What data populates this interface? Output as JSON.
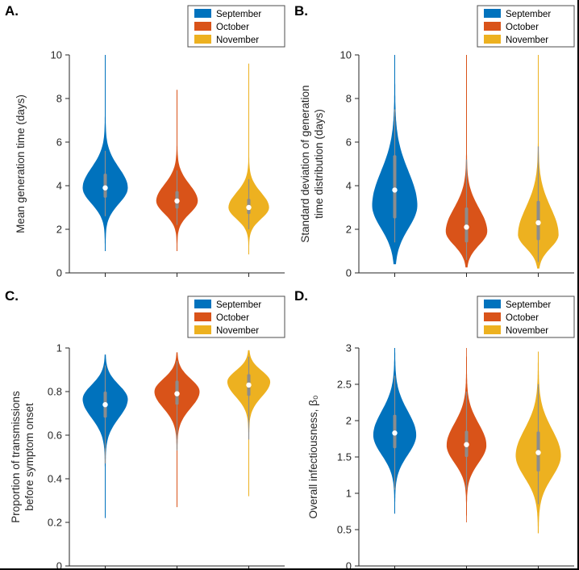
{
  "figure": {
    "background": "#FFFFFF",
    "months": [
      {
        "label": "September",
        "color": "#0072BD"
      },
      {
        "label": "October",
        "color": "#D95319"
      },
      {
        "label": "November",
        "color": "#EDB120"
      }
    ]
  },
  "chart_data": [
    {
      "type": "violin",
      "panel_label": "A.",
      "ylabel_lines": [
        "Mean generation time (days)"
      ],
      "ylim": [
        0,
        10
      ],
      "ytick_values": [
        0,
        2,
        4,
        6,
        8,
        10
      ],
      "ytick_labels": [
        "0",
        "2",
        "4",
        "6",
        "8",
        "10"
      ],
      "legend": [
        "September",
        "October",
        "November"
      ],
      "legend_position": "top-right",
      "violins": [
        {
          "name": "September",
          "color": "#0072BD",
          "median": 3.9,
          "q1": 3.45,
          "q3": 4.55,
          "whisker_low": 2.6,
          "whisker_high": 5.6,
          "min": 1.0,
          "max": 10.0,
          "peak": 3.9,
          "spread_below": 0.72,
          "spread_above": 0.92,
          "rel_width": 1.0
        },
        {
          "name": "October",
          "color": "#D95319",
          "median": 3.3,
          "q1": 2.95,
          "q3": 3.75,
          "whisker_low": 2.2,
          "whisker_high": 4.7,
          "min": 1.0,
          "max": 8.4,
          "peak": 3.3,
          "spread_below": 0.58,
          "spread_above": 0.75,
          "rel_width": 0.92
        },
        {
          "name": "November",
          "color": "#EDB120",
          "median": 3.0,
          "q1": 2.7,
          "q3": 3.4,
          "whisker_low": 2.0,
          "whisker_high": 4.3,
          "min": 0.85,
          "max": 9.6,
          "peak": 3.0,
          "spread_below": 0.52,
          "spread_above": 0.68,
          "rel_width": 0.9
        }
      ]
    },
    {
      "type": "violin",
      "panel_label": "B.",
      "ylabel_lines": [
        "Standard deviation of generation",
        "time distribution (days)"
      ],
      "ylim": [
        0,
        10
      ],
      "ytick_values": [
        0,
        2,
        4,
        6,
        8,
        10
      ],
      "ytick_labels": [
        "0",
        "2",
        "4",
        "6",
        "8",
        "10"
      ],
      "legend": [
        "September",
        "October",
        "November"
      ],
      "legend_position": "top-right",
      "violins": [
        {
          "name": "September",
          "color": "#0072BD",
          "median": 3.8,
          "q1": 2.5,
          "q3": 5.4,
          "whisker_low": 1.4,
          "whisker_high": 7.5,
          "min": 0.4,
          "max": 10.0,
          "peak": 3.1,
          "spread_below": 1.05,
          "spread_above": 1.55,
          "rel_width": 1.0
        },
        {
          "name": "October",
          "color": "#D95319",
          "median": 2.1,
          "q1": 1.4,
          "q3": 3.0,
          "whisker_low": 0.6,
          "whisker_high": 5.2,
          "min": 0.25,
          "max": 10.0,
          "peak": 1.9,
          "spread_below": 0.62,
          "spread_above": 1.05,
          "rel_width": 0.92
        },
        {
          "name": "November",
          "color": "#EDB120",
          "median": 2.3,
          "q1": 1.5,
          "q3": 3.3,
          "whisker_low": 0.5,
          "whisker_high": 5.8,
          "min": 0.2,
          "max": 10.0,
          "peak": 1.75,
          "spread_below": 0.6,
          "spread_above": 1.25,
          "rel_width": 0.9
        }
      ]
    },
    {
      "type": "violin",
      "panel_label": "C.",
      "ylabel_lines": [
        "Proportion of transmissions",
        "before symptom onset"
      ],
      "ylim": [
        0,
        1
      ],
      "ytick_values": [
        0,
        0.2,
        0.4,
        0.6,
        0.8,
        1
      ],
      "ytick_labels": [
        "0",
        "0.2",
        "0.4",
        "0.6",
        "0.8",
        "1"
      ],
      "legend": [
        "September",
        "October",
        "November"
      ],
      "legend_position": "top-right",
      "violins": [
        {
          "name": "September",
          "color": "#0072BD",
          "median": 0.74,
          "q1": 0.68,
          "q3": 0.8,
          "whisker_low": 0.47,
          "whisker_high": 0.92,
          "min": 0.22,
          "max": 0.97,
          "peak": 0.765,
          "spread_below": 0.085,
          "spread_above": 0.065,
          "rel_width": 1.0
        },
        {
          "name": "October",
          "color": "#D95319",
          "median": 0.79,
          "q1": 0.74,
          "q3": 0.85,
          "whisker_low": 0.53,
          "whisker_high": 0.94,
          "min": 0.27,
          "max": 0.98,
          "peak": 0.8,
          "spread_below": 0.075,
          "spread_above": 0.058,
          "rel_width": 1.0
        },
        {
          "name": "November",
          "color": "#EDB120",
          "median": 0.83,
          "q1": 0.78,
          "q3": 0.88,
          "whisker_low": 0.58,
          "whisker_high": 0.96,
          "min": 0.32,
          "max": 0.99,
          "peak": 0.845,
          "spread_below": 0.068,
          "spread_above": 0.05,
          "rel_width": 0.95
        }
      ]
    },
    {
      "type": "violin",
      "panel_label": "D.",
      "ylabel_lines": [
        "Overall infectiousness, β₀"
      ],
      "ylim": [
        0,
        3
      ],
      "ytick_values": [
        0,
        0.5,
        1,
        1.5,
        2,
        2.5,
        3
      ],
      "ytick_labels": [
        "0",
        "0.5",
        "1",
        "1.5",
        "2",
        "2.5",
        "3"
      ],
      "legend": [
        "September",
        "October",
        "November"
      ],
      "legend_position": "top-right",
      "violins": [
        {
          "name": "September",
          "color": "#0072BD",
          "median": 1.83,
          "q1": 1.62,
          "q3": 2.08,
          "whisker_low": 1.05,
          "whisker_high": 2.62,
          "min": 0.72,
          "max": 3.0,
          "peak": 1.8,
          "spread_below": 0.27,
          "spread_above": 0.33,
          "rel_width": 0.95
        },
        {
          "name": "October",
          "color": "#D95319",
          "median": 1.67,
          "q1": 1.5,
          "q3": 1.86,
          "whisker_low": 1.05,
          "whisker_high": 2.4,
          "min": 0.6,
          "max": 3.0,
          "peak": 1.66,
          "spread_below": 0.24,
          "spread_above": 0.3,
          "rel_width": 0.88
        },
        {
          "name": "November",
          "color": "#EDB120",
          "median": 1.56,
          "q1": 1.3,
          "q3": 1.85,
          "whisker_low": 0.85,
          "whisker_high": 2.5,
          "min": 0.45,
          "max": 2.95,
          "peak": 1.52,
          "spread_below": 0.3,
          "spread_above": 0.36,
          "rel_width": 1.0
        }
      ]
    }
  ]
}
